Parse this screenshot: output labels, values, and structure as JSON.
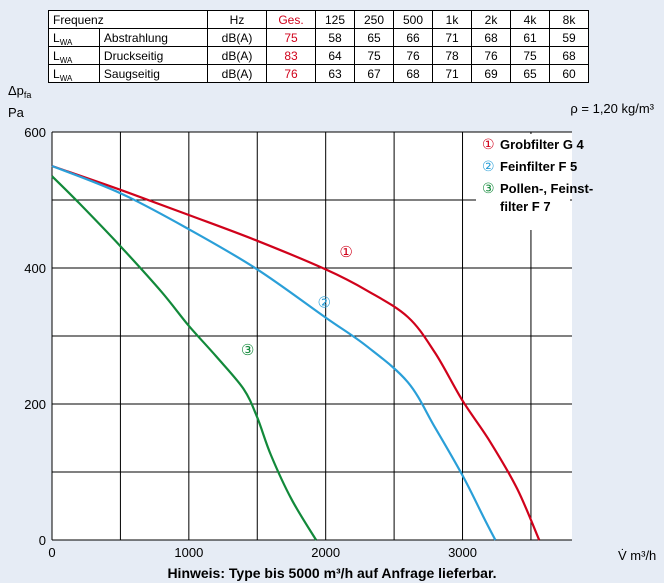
{
  "sound_table": {
    "header": [
      "Frequenz",
      "Hz",
      "Ges.",
      "125",
      "250",
      "500",
      "1k",
      "2k",
      "4k",
      "8k"
    ],
    "rows": [
      {
        "sym": "L",
        "sub": "WA",
        "name": "Abstrahlung",
        "unit": "dB(A)",
        "total": "75",
        "values": [
          "58",
          "65",
          "66",
          "71",
          "68",
          "61",
          "59"
        ]
      },
      {
        "sym": "L",
        "sub": "WA",
        "name": "Druckseitig",
        "unit": "dB(A)",
        "total": "83",
        "values": [
          "64",
          "75",
          "76",
          "78",
          "76",
          "75",
          "68"
        ]
      },
      {
        "sym": "L",
        "sub": "WA",
        "name": "Saugseitig",
        "unit": "dB(A)",
        "total": "76",
        "values": [
          "63",
          "67",
          "68",
          "71",
          "69",
          "65",
          "60"
        ]
      }
    ]
  },
  "density_note": "ρ = 1,20 kg/m³",
  "note": "Hinweis: Type bis 5000 m³/h auf Anfrage lieferbar.",
  "colors": {
    "red": "#d0021b",
    "blue": "#2a9fd8",
    "green": "#12893a",
    "grid": "#000000",
    "background": "#e6ecf5"
  },
  "chart_data": {
    "type": "line",
    "ylabel": "Δp_fa",
    "yunit": "Pa",
    "xlabel": "V̇ m³/h",
    "xlim": [
      0,
      3800
    ],
    "ylim": [
      0,
      600
    ],
    "xticks": [
      0,
      1000,
      2000,
      3000
    ],
    "yticks": [
      0,
      200,
      400,
      600
    ],
    "x_gridlines": [
      0,
      500,
      1000,
      1500,
      2000,
      2500,
      3000,
      3500
    ],
    "y_gridlines": [
      0,
      100,
      200,
      300,
      400,
      500,
      600
    ],
    "grid": true,
    "legend_position": "top-right",
    "series": [
      {
        "marker": "①",
        "name": "Grobfilter G 4",
        "color": "#d0021b",
        "label_at": [
          2100,
          416
        ],
        "points": [
          [
            0,
            550
          ],
          [
            500,
            515
          ],
          [
            1000,
            478
          ],
          [
            1500,
            440
          ],
          [
            2000,
            398
          ],
          [
            2300,
            367
          ],
          [
            2600,
            328
          ],
          [
            2800,
            275
          ],
          [
            3000,
            205
          ],
          [
            3200,
            145
          ],
          [
            3400,
            75
          ],
          [
            3560,
            0
          ]
        ]
      },
      {
        "marker": "②",
        "name": "Feinfilter F 5",
        "color": "#2a9fd8",
        "label_at": [
          1940,
          342
        ],
        "points": [
          [
            0,
            550
          ],
          [
            500,
            510
          ],
          [
            1000,
            457
          ],
          [
            1500,
            398
          ],
          [
            2000,
            327
          ],
          [
            2300,
            285
          ],
          [
            2600,
            232
          ],
          [
            2800,
            165
          ],
          [
            3000,
            95
          ],
          [
            3150,
            35
          ],
          [
            3240,
            0
          ]
        ]
      },
      {
        "marker": "③",
        "name": [
          "Pollen-, Feinst-",
          "filter F 7"
        ],
        "color": "#12893a",
        "label_at": [
          1380,
          272
        ],
        "points": [
          [
            0,
            535
          ],
          [
            200,
            495
          ],
          [
            500,
            432
          ],
          [
            800,
            365
          ],
          [
            1000,
            315
          ],
          [
            1200,
            270
          ],
          [
            1400,
            222
          ],
          [
            1500,
            180
          ],
          [
            1600,
            125
          ],
          [
            1750,
            60
          ],
          [
            1930,
            0
          ]
        ]
      }
    ]
  }
}
